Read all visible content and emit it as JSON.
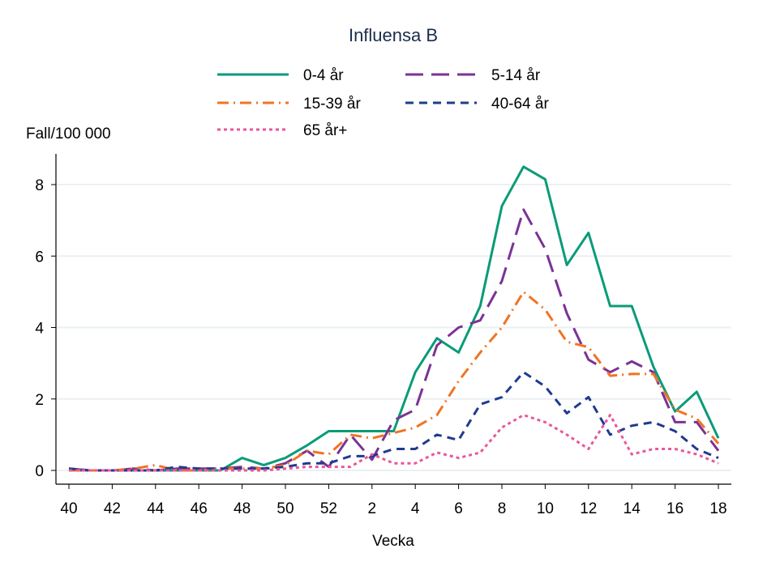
{
  "chart_data": {
    "type": "line",
    "title": "Influensa B",
    "xlabel": "Vecka",
    "ylabel": "Fall/100 000",
    "x": [
      "40",
      "41",
      "42",
      "43",
      "44",
      "45",
      "46",
      "47",
      "48",
      "49",
      "50",
      "51",
      "52",
      "1",
      "2",
      "3",
      "4",
      "5",
      "6",
      "7",
      "8",
      "9",
      "10",
      "11",
      "12",
      "13",
      "14",
      "15",
      "16",
      "17",
      "18"
    ],
    "x_tick_labels": [
      "40",
      "42",
      "44",
      "46",
      "48",
      "50",
      "52",
      "2",
      "4",
      "6",
      "8",
      "10",
      "12",
      "14",
      "16",
      "18"
    ],
    "y_ticks": [
      0,
      2,
      4,
      6,
      8
    ],
    "ylim": [
      0,
      8.8
    ],
    "grid": true,
    "legend_position": "top",
    "series": [
      {
        "name": "0-4 år",
        "color": "#0a9b78",
        "dash": "solid",
        "values": [
          0,
          0,
          0,
          0,
          0,
          0,
          0,
          0,
          0.35,
          0.15,
          0.35,
          0.7,
          1.1,
          1.1,
          1.1,
          1.1,
          2.75,
          3.7,
          3.3,
          4.6,
          7.4,
          8.5,
          8.15,
          5.75,
          6.65,
          4.6,
          4.6,
          2.9,
          1.65,
          2.2,
          0.9
        ]
      },
      {
        "name": "5-14 år",
        "color": "#7b3294",
        "dash": "longdash",
        "values": [
          0.05,
          0,
          0,
          0.05,
          0,
          0.05,
          0.05,
          0.05,
          0.1,
          0.05,
          0.2,
          0.55,
          0.1,
          1.0,
          0.3,
          1.4,
          1.7,
          3.5,
          4.0,
          4.2,
          5.3,
          7.3,
          6.2,
          4.4,
          3.1,
          2.75,
          3.05,
          2.75,
          1.35,
          1.35,
          0.55
        ]
      },
      {
        "name": "15-39 år",
        "color": "#f07424",
        "dash": "dashdot",
        "values": [
          0,
          0,
          0,
          0.05,
          0.15,
          0,
          0,
          0.05,
          0.05,
          0.05,
          0.15,
          0.55,
          0.45,
          1.0,
          0.9,
          1.05,
          1.2,
          1.55,
          2.5,
          3.3,
          4.0,
          5.0,
          4.5,
          3.6,
          3.45,
          2.65,
          2.7,
          2.7,
          1.7,
          1.45,
          0.75
        ]
      },
      {
        "name": "40-64 år",
        "color": "#1f3b8f",
        "dash": "shortdash",
        "values": [
          0.05,
          0,
          0,
          0,
          0,
          0.1,
          0.05,
          0.05,
          0.05,
          0.05,
          0.1,
          0.2,
          0.2,
          0.4,
          0.4,
          0.6,
          0.6,
          1.0,
          0.85,
          1.85,
          2.05,
          2.75,
          2.35,
          1.6,
          2.05,
          1.0,
          1.25,
          1.35,
          1.1,
          0.6,
          0.35
        ]
      },
      {
        "name": "65 år+",
        "color": "#e8579b",
        "dash": "dot",
        "values": [
          0,
          0,
          0,
          0,
          0,
          0,
          0,
          0,
          0,
          0,
          0.05,
          0.1,
          0.1,
          0.1,
          0.45,
          0.2,
          0.2,
          0.5,
          0.35,
          0.5,
          1.2,
          1.55,
          1.35,
          1.0,
          0.6,
          1.55,
          0.45,
          0.6,
          0.6,
          0.45,
          0.2
        ]
      }
    ]
  }
}
